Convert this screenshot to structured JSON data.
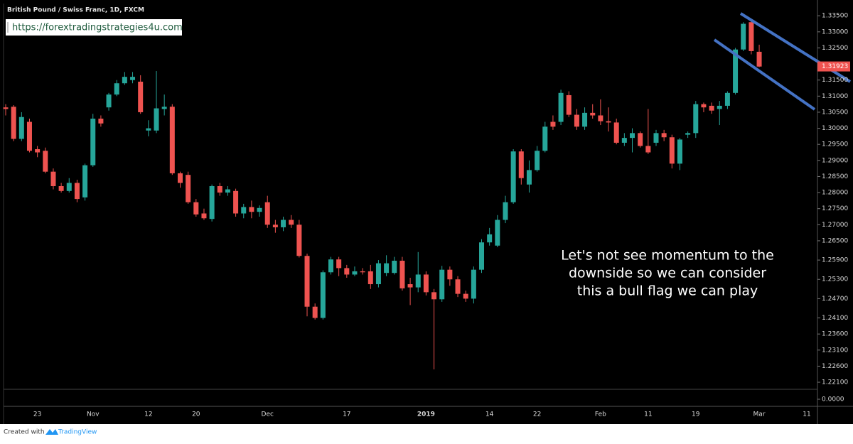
{
  "chart_data": {
    "type": "candlestick",
    "title": "British Pound / Swiss Franc, 1D, FXCM",
    "watermark_url": "https://forextradingstrategies4u.com",
    "annotation": [
      "Let's not see momentum to  the",
      "downside so we can consider",
      "this a bull flag we can play"
    ],
    "categories": [
      null,
      null,
      null,
      null,
      "23",
      null,
      null,
      null,
      null,
      null,
      null,
      "Nov",
      null,
      null,
      null,
      null,
      null,
      null,
      "12",
      null,
      null,
      null,
      null,
      null,
      "20",
      null,
      null,
      null,
      null,
      null,
      null,
      null,
      null,
      "Dec",
      null,
      null,
      null,
      null,
      null,
      null,
      null,
      null,
      null,
      "17",
      null,
      null,
      null,
      null,
      null,
      null,
      null,
      null,
      null,
      "2019",
      null,
      null,
      null,
      null,
      null,
      null,
      null,
      "14",
      null,
      null,
      null,
      null,
      null,
      "22",
      null,
      null,
      null,
      null,
      null,
      null,
      null,
      "Feb",
      null,
      null,
      null,
      null,
      null,
      "11",
      null,
      null,
      null,
      null,
      null,
      "19",
      null,
      null,
      null,
      null,
      null,
      null,
      null,
      "Mar",
      null,
      null,
      null,
      null,
      null,
      "11"
    ],
    "open": [
      1.3065,
      1.3067,
      1.2967,
      1.302,
      1.2935,
      1.293,
      1.2865,
      1.282,
      1.2805,
      1.283,
      1.2785,
      1.2885,
      1.303,
      1.3065,
      1.3105,
      1.314,
      1.315,
      1.3145,
      1.2993,
      1.2993,
      1.306,
      1.3067,
      1.286,
      1.2855,
      1.277,
      1.2735,
      1.2718,
      1.282,
      1.28,
      1.2805,
      1.2735,
      1.2755,
      1.274,
      1.277,
      1.27,
      1.2692,
      1.2715,
      1.27,
      1.2603,
      1.2445,
      1.241,
      1.2552,
      1.2592,
      1.2565,
      1.2545,
      1.2555,
      1.2555,
      1.2515,
      1.255,
      1.255,
      1.2588,
      1.2515,
      1.2505,
      1.2545,
      1.249,
      1.2468,
      1.256,
      1.253,
      1.2485,
      1.247,
      1.256,
      1.2645,
      1.2635,
      1.2715,
      1.277,
      1.2928,
      1.2825,
      1.287,
      1.293,
      1.302,
      1.302,
      1.3103,
      1.3042,
      1.3005,
      1.3048,
      1.304,
      1.3022,
      1.3018,
      1.2955,
      1.297,
      1.2985,
      1.2945,
      1.2955,
      1.2985,
      1.2972,
      1.289,
      1.298,
      1.2985,
      1.3075,
      1.307,
      1.306,
      1.307,
      1.311,
      1.3245,
      1.333,
      1.3238,
      null,
      null,
      null,
      null,
      null,
      null
    ],
    "high": [
      1.3075,
      1.3072,
      1.305,
      1.303,
      1.2945,
      1.294,
      1.2875,
      1.283,
      1.2845,
      1.284,
      1.289,
      1.3045,
      1.304,
      1.311,
      1.315,
      1.3175,
      1.3175,
      1.3165,
      1.3025,
      1.3178,
      1.3105,
      1.3075,
      1.2865,
      1.2865,
      1.278,
      1.275,
      1.2825,
      1.283,
      1.282,
      1.2812,
      1.2765,
      1.2775,
      1.276,
      1.279,
      1.2715,
      1.2725,
      1.273,
      1.2715,
      1.261,
      1.2455,
      1.2558,
      1.26,
      1.26,
      1.2575,
      1.257,
      1.2565,
      1.2575,
      1.259,
      1.2605,
      1.26,
      1.26,
      1.2535,
      1.2615,
      1.2555,
      1.25,
      1.2572,
      1.257,
      1.254,
      1.2495,
      1.257,
      1.2655,
      1.269,
      1.273,
      1.279,
      1.2935,
      1.2935,
      1.29,
      1.2945,
      1.302,
      1.304,
      1.312,
      1.3115,
      1.306,
      1.3065,
      1.3075,
      1.309,
      1.3065,
      1.303,
      1.2985,
      1.3,
      1.299,
      1.306,
      1.2995,
      1.2995,
      1.298,
      1.297,
      1.299,
      1.3085,
      1.308,
      1.308,
      1.3085,
      1.3115,
      1.325,
      1.333,
      1.3335,
      1.326,
      null,
      null,
      null,
      null,
      null,
      null
    ],
    "low": [
      1.304,
      1.296,
      1.296,
      1.2925,
      1.291,
      1.286,
      1.281,
      1.28,
      1.28,
      1.277,
      1.2775,
      1.288,
      1.3005,
      1.3055,
      1.31,
      1.3135,
      1.314,
      1.3045,
      1.2975,
      1.2985,
      1.304,
      1.2855,
      1.2815,
      1.2765,
      1.2725,
      1.2715,
      1.271,
      1.279,
      1.279,
      1.2725,
      1.272,
      1.272,
      1.2725,
      1.269,
      1.2675,
      1.268,
      1.269,
      1.2598,
      1.2415,
      1.2405,
      1.2405,
      1.2545,
      1.254,
      1.2535,
      1.254,
      1.2545,
      1.25,
      1.2505,
      1.254,
      1.2545,
      1.2495,
      1.245,
      1.249,
      1.248,
      1.225,
      1.246,
      1.251,
      1.2475,
      1.246,
      1.2455,
      1.255,
      1.2635,
      1.263,
      1.2705,
      1.2765,
      1.2825,
      1.28,
      1.2865,
      1.2925,
      1.2995,
      1.301,
      1.3035,
      1.2995,
      1.2995,
      1.303,
      1.301,
      1.299,
      1.295,
      1.2945,
      1.2925,
      1.294,
      1.292,
      1.2945,
      1.296,
      1.2875,
      1.287,
      1.297,
      1.297,
      1.305,
      1.3045,
      1.301,
      1.306,
      1.3105,
      1.324,
      1.323,
      1.319,
      null,
      null,
      null,
      null,
      null,
      null
    ],
    "close": [
      1.306,
      1.2967,
      1.3035,
      1.293,
      1.2925,
      1.2865,
      1.282,
      1.2805,
      1.283,
      1.278,
      1.2885,
      1.303,
      1.3015,
      1.3105,
      1.314,
      1.316,
      1.316,
      1.305,
      1.3,
      1.3062,
      1.3067,
      1.286,
      1.283,
      1.277,
      1.2732,
      1.272,
      1.282,
      1.28,
      1.281,
      1.2735,
      1.2755,
      1.274,
      1.2752,
      1.27,
      1.2692,
      1.2715,
      1.27,
      1.2603,
      1.2445,
      1.241,
      1.2552,
      1.2592,
      1.2565,
      1.2545,
      1.2555,
      1.2552,
      1.2515,
      1.258,
      1.258,
      1.2588,
      1.2502,
      1.2505,
      1.2545,
      1.249,
      1.2468,
      1.256,
      1.253,
      1.2485,
      1.247,
      1.256,
      1.2645,
      1.267,
      1.2715,
      1.277,
      1.2928,
      1.2845,
      1.287,
      1.293,
      1.3005,
      1.3005,
      1.311,
      1.3042,
      1.3005,
      1.3048,
      1.304,
      1.3022,
      1.3018,
      1.2955,
      1.297,
      1.2985,
      1.2945,
      1.2925,
      1.2985,
      1.2972,
      1.289,
      1.2965,
      1.2985,
      1.3075,
      1.3065,
      1.3055,
      1.307,
      1.311,
      1.3245,
      1.3325,
      1.324,
      1.3192,
      null,
      null,
      null,
      null,
      null,
      null
    ],
    "up_color": "#26a69a",
    "down_color": "#ef5350",
    "ylim": [
      1.2188,
      1.3388
    ],
    "yticks": [
      {
        "value": 1.335,
        "label": "1.33500"
      },
      {
        "value": 1.33,
        "label": "1.33000"
      },
      {
        "value": 1.325,
        "label": "1.32500"
      },
      {
        "value": 1.315,
        "label": "1.31500"
      },
      {
        "value": 1.31,
        "label": "1.31000"
      },
      {
        "value": 1.305,
        "label": "1.30500"
      },
      {
        "value": 1.3,
        "label": "1.30000"
      },
      {
        "value": 1.295,
        "label": "1.29500"
      },
      {
        "value": 1.29,
        "label": "1.29000"
      },
      {
        "value": 1.285,
        "label": "1.28500"
      },
      {
        "value": 1.28,
        "label": "1.28000"
      },
      {
        "value": 1.275,
        "label": "1.27500"
      },
      {
        "value": 1.27,
        "label": "1.27000"
      },
      {
        "value": 1.265,
        "label": "1.26500"
      },
      {
        "value": 1.259,
        "label": "1.25900"
      },
      {
        "value": 1.253,
        "label": "1.25300"
      },
      {
        "value": 1.247,
        "label": "1.24700"
      },
      {
        "value": 1.241,
        "label": "1.24100"
      },
      {
        "value": 1.236,
        "label": "1.23600"
      },
      {
        "value": 1.231,
        "label": "1.23100"
      },
      {
        "value": 1.226,
        "label": "1.22600"
      },
      {
        "value": 1.221,
        "label": "1.22100"
      }
    ],
    "last_price": 1.31923,
    "lower_panel_ticks": [
      {
        "value": 0,
        "label": "0.0000"
      }
    ]
  },
  "footer": {
    "prefix": "Created with",
    "brand": "TradingView"
  }
}
